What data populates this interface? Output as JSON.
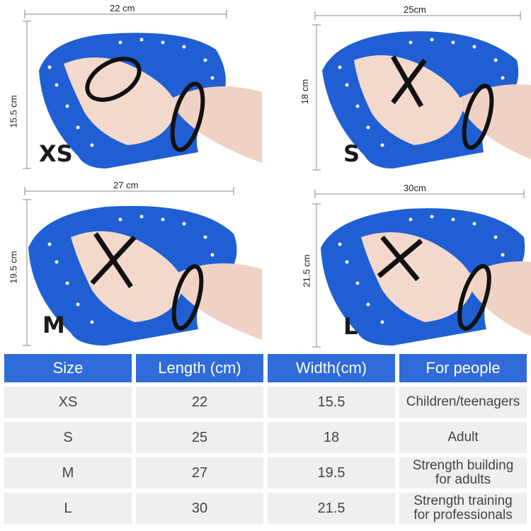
{
  "panels": [
    {
      "size": "XS",
      "width_label": "22 cm",
      "height_label": "15.5 cm"
    },
    {
      "size": "S",
      "width_label": "25cm",
      "height_label": "18 cm"
    },
    {
      "size": "M",
      "width_label": "27 cm",
      "height_label": "19.5 cm"
    },
    {
      "size": "L",
      "width_label": "30cm",
      "height_label": "21.5 cm"
    }
  ],
  "colors": {
    "paddle_blue": "#1f5fd3",
    "header_blue": "#2f6bd9",
    "row_gray": "#efefef",
    "strap_black": "#111111"
  },
  "table": {
    "headers": [
      "Size",
      "Length (cm)",
      "Width(cm)",
      "For people"
    ],
    "rows": [
      {
        "size": "XS",
        "length": "22",
        "width": "15.5",
        "people_1": "Children/teenagers",
        "people_2": ""
      },
      {
        "size": "S",
        "length": "25",
        "width": "18",
        "people_1": "Adult",
        "people_2": ""
      },
      {
        "size": "M",
        "length": "27",
        "width": "19.5",
        "people_1": "Strength building",
        "people_2": "for adults"
      },
      {
        "size": "L",
        "length": "30",
        "width": "21.5",
        "people_1": "Strength training",
        "people_2": "for professionals"
      }
    ]
  }
}
